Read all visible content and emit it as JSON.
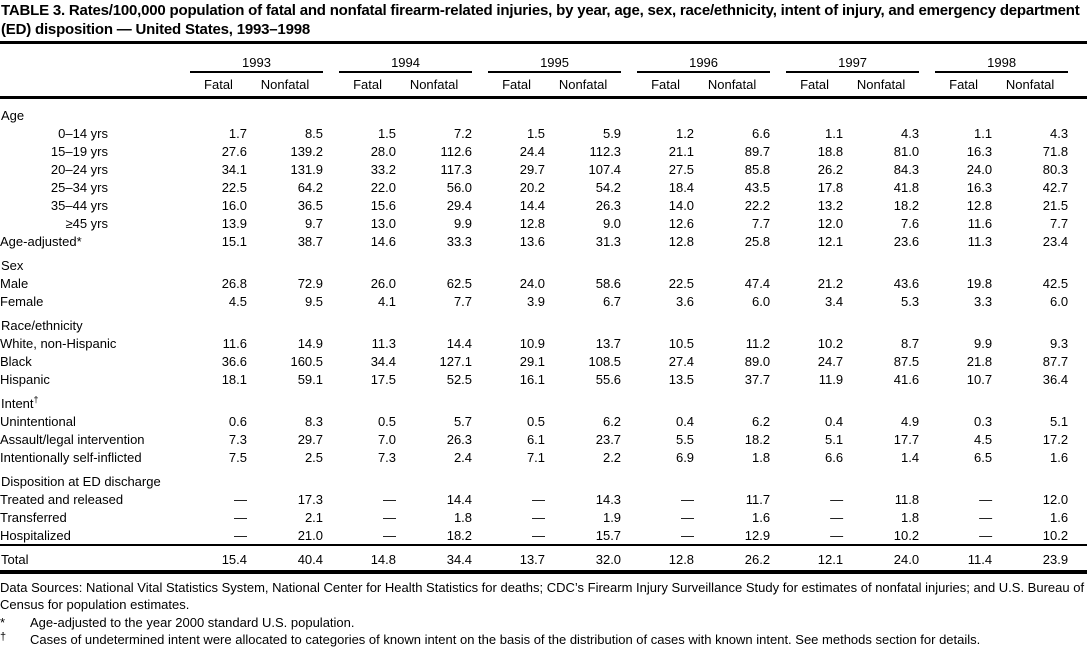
{
  "title": "TABLE 3. Rates/100,000 population of fatal and nonfatal firearm-related injuries, by year, age, sex, race/ethnicity, intent of injury, and emergency department (ED) disposition — United States, 1993–1998",
  "table": {
    "years": [
      "1993",
      "1994",
      "1995",
      "1996",
      "1997",
      "1998"
    ],
    "subheaders": [
      "Fatal",
      "Nonfatal"
    ],
    "rows": [
      {
        "label": "Age",
        "type": "section"
      },
      {
        "label": "0–14 yrs",
        "type": "age",
        "values": [
          "1.7",
          "8.5",
          "1.5",
          "7.2",
          "1.5",
          "5.9",
          "1.2",
          "6.6",
          "1.1",
          "4.3",
          "1.1",
          "4.3"
        ]
      },
      {
        "label": "15–19 yrs",
        "type": "age",
        "values": [
          "27.6",
          "139.2",
          "28.0",
          "112.6",
          "24.4",
          "112.3",
          "21.1",
          "89.7",
          "18.8",
          "81.0",
          "16.3",
          "71.8"
        ]
      },
      {
        "label": "20–24 yrs",
        "type": "age",
        "values": [
          "34.1",
          "131.9",
          "33.2",
          "117.3",
          "29.7",
          "107.4",
          "27.5",
          "85.8",
          "26.2",
          "84.3",
          "24.0",
          "80.3"
        ]
      },
      {
        "label": "25–34 yrs",
        "type": "age",
        "values": [
          "22.5",
          "64.2",
          "22.0",
          "56.0",
          "20.2",
          "54.2",
          "18.4",
          "43.5",
          "17.8",
          "41.8",
          "16.3",
          "42.7"
        ]
      },
      {
        "label": "35–44 yrs",
        "type": "age",
        "values": [
          "16.0",
          "36.5",
          "15.6",
          "29.4",
          "14.4",
          "26.3",
          "14.0",
          "22.2",
          "13.2",
          "18.2",
          "12.8",
          "21.5"
        ]
      },
      {
        "label": "≥45 yrs",
        "type": "age",
        "values": [
          "13.9",
          "9.7",
          "13.0",
          "9.9",
          "12.8",
          "9.0",
          "12.6",
          "7.7",
          "12.0",
          "7.6",
          "11.6",
          "7.7"
        ]
      },
      {
        "label": "Age-adjusted*",
        "type": "item",
        "values": [
          "15.1",
          "38.7",
          "14.6",
          "33.3",
          "13.6",
          "31.3",
          "12.8",
          "25.8",
          "12.1",
          "23.6",
          "11.3",
          "23.4"
        ]
      },
      {
        "label": "Sex",
        "type": "section"
      },
      {
        "label": "Male",
        "type": "item",
        "values": [
          "26.8",
          "72.9",
          "26.0",
          "62.5",
          "24.0",
          "58.6",
          "22.5",
          "47.4",
          "21.2",
          "43.6",
          "19.8",
          "42.5"
        ]
      },
      {
        "label": "Female",
        "type": "item",
        "values": [
          "4.5",
          "9.5",
          "4.1",
          "7.7",
          "3.9",
          "6.7",
          "3.6",
          "6.0",
          "3.4",
          "5.3",
          "3.3",
          "6.0"
        ]
      },
      {
        "label": "Race/ethnicity",
        "type": "section"
      },
      {
        "label": "White, non-Hispanic",
        "type": "item",
        "values": [
          "11.6",
          "14.9",
          "11.3",
          "14.4",
          "10.9",
          "13.7",
          "10.5",
          "11.2",
          "10.2",
          "8.7",
          "9.9",
          "9.3"
        ]
      },
      {
        "label": "Black",
        "type": "item",
        "values": [
          "36.6",
          "160.5",
          "34.4",
          "127.1",
          "29.1",
          "108.5",
          "27.4",
          "89.0",
          "24.7",
          "87.5",
          "21.8",
          "87.7"
        ]
      },
      {
        "label": "Hispanic",
        "type": "item",
        "values": [
          "18.1",
          "59.1",
          "17.5",
          "52.5",
          "16.1",
          "55.6",
          "13.5",
          "37.7",
          "11.9",
          "41.6",
          "10.7",
          "36.4"
        ]
      },
      {
        "label": "Intent",
        "sup": "†",
        "type": "section"
      },
      {
        "label": "Unintentional",
        "type": "item",
        "values": [
          "0.6",
          "8.3",
          "0.5",
          "5.7",
          "0.5",
          "6.2",
          "0.4",
          "6.2",
          "0.4",
          "4.9",
          "0.3",
          "5.1"
        ]
      },
      {
        "label": "Assault/legal intervention",
        "type": "item",
        "values": [
          "7.3",
          "29.7",
          "7.0",
          "26.3",
          "6.1",
          "23.7",
          "5.5",
          "18.2",
          "5.1",
          "17.7",
          "4.5",
          "17.2"
        ]
      },
      {
        "label": "Intentionally self-inflicted",
        "type": "item",
        "values": [
          "7.5",
          "2.5",
          "7.3",
          "2.4",
          "7.1",
          "2.2",
          "6.9",
          "1.8",
          "6.6",
          "1.4",
          "6.5",
          "1.6"
        ]
      },
      {
        "label": "Disposition at ED discharge",
        "type": "section"
      },
      {
        "label": "Treated and released",
        "type": "item",
        "values": [
          "—",
          "17.3",
          "—",
          "14.4",
          "—",
          "14.3",
          "—",
          "11.7",
          "—",
          "11.8",
          "—",
          "12.0"
        ]
      },
      {
        "label": "Transferred",
        "type": "item",
        "values": [
          "—",
          "2.1",
          "—",
          "1.8",
          "—",
          "1.9",
          "—",
          "1.6",
          "—",
          "1.8",
          "—",
          "1.6"
        ]
      },
      {
        "label": "Hospitalized",
        "type": "item",
        "values": [
          "—",
          "21.0",
          "—",
          "18.2",
          "—",
          "15.7",
          "—",
          "12.9",
          "—",
          "10.2",
          "—",
          "10.2"
        ]
      },
      {
        "label": "Total",
        "type": "total",
        "values": [
          "15.4",
          "40.4",
          "14.8",
          "34.4",
          "13.7",
          "32.0",
          "12.8",
          "26.2",
          "12.1",
          "24.0",
          "11.4",
          "23.9"
        ]
      }
    ]
  },
  "footnotes": {
    "data_sources": "Data Sources: National Vital Statistics System, National Center for Health Statistics for deaths; CDC’s Firearm Injury Surveillance Study for estimates of nonfatal injuries; and U.S. Bureau of Census for population estimates.",
    "items": [
      {
        "marker": "*",
        "text": "Age-adjusted to the year 2000 standard U.S. population."
      },
      {
        "marker": "†",
        "text": "Cases of undetermined intent were allocated to categories of known intent on the basis of the distribution of cases with known intent. See methods section for details."
      }
    ]
  }
}
